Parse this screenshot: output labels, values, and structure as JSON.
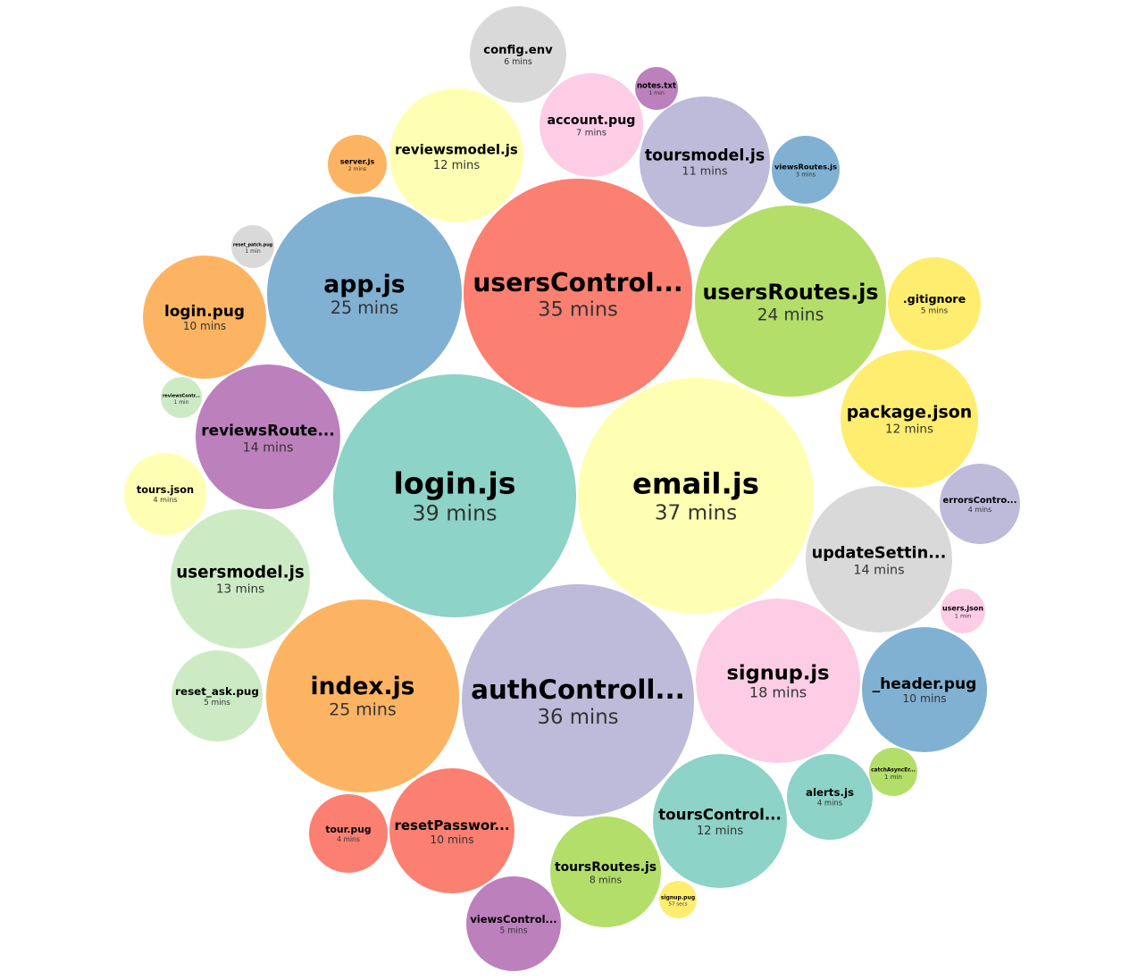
{
  "chart_data": {
    "type": "bubble",
    "title": "",
    "value_unit": "mins",
    "bubbles": [
      {
        "name": "login.js",
        "duration": "39 mins",
        "minutes": 39,
        "color": "#8DD3C7"
      },
      {
        "name": "email.js",
        "duration": "37 mins",
        "minutes": 37,
        "color": "#FFFFB3"
      },
      {
        "name": "authControll...",
        "duration": "36 mins",
        "minutes": 36,
        "color": "#BEBADA"
      },
      {
        "name": "usersControl...",
        "duration": "35 mins",
        "minutes": 35,
        "color": "#FB8072"
      },
      {
        "name": "app.js",
        "duration": "25 mins",
        "minutes": 25,
        "color": "#80B1D3"
      },
      {
        "name": "index.js",
        "duration": "25 mins",
        "minutes": 25,
        "color": "#FDB462"
      },
      {
        "name": "usersRoutes.js",
        "duration": "24 mins",
        "minutes": 24,
        "color": "#B3DE69"
      },
      {
        "name": "signup.js",
        "duration": "18 mins",
        "minutes": 18,
        "color": "#FCCDE5"
      },
      {
        "name": "reviewsRoute...",
        "duration": "14 mins",
        "minutes": 14,
        "color": "#BC80BD"
      },
      {
        "name": "updateSettin...",
        "duration": "14 mins",
        "minutes": 14,
        "color": "#D9D9D9"
      },
      {
        "name": "usersmodel.js",
        "duration": "13 mins",
        "minutes": 13,
        "color": "#CCEBC5"
      },
      {
        "name": "reviewsmodel.js",
        "duration": "12 mins",
        "minutes": 12,
        "color": "#FFFFB3"
      },
      {
        "name": "package.json",
        "duration": "12 mins",
        "minutes": 12,
        "color": "#FFED6F"
      },
      {
        "name": "toursControl...",
        "duration": "12 mins",
        "minutes": 12,
        "color": "#8DD3C7"
      },
      {
        "name": "toursmodel.js",
        "duration": "11 mins",
        "minutes": 11,
        "color": "#BEBADA"
      },
      {
        "name": "login.pug",
        "duration": "10 mins",
        "minutes": 10,
        "color": "#FDB462"
      },
      {
        "name": "_header.pug",
        "duration": "10 mins",
        "minutes": 10,
        "color": "#80B1D3"
      },
      {
        "name": "resetPasswor...",
        "duration": "10 mins",
        "minutes": 10,
        "color": "#FB8072"
      },
      {
        "name": "toursRoutes.js",
        "duration": "8 mins",
        "minutes": 8,
        "color": "#B3DE69"
      },
      {
        "name": "account.pug",
        "duration": "7 mins",
        "minutes": 7,
        "color": "#FCCDE5"
      },
      {
        "name": "config.env",
        "duration": "6 mins",
        "minutes": 6,
        "color": "#D9D9D9"
      },
      {
        "name": ".gitignore",
        "duration": "5 mins",
        "minutes": 5,
        "color": "#FFED6F"
      },
      {
        "name": "reset_ask.pug",
        "duration": "5 mins",
        "minutes": 5,
        "color": "#CCEBC5"
      },
      {
        "name": "viewsControl...",
        "duration": "5 mins",
        "minutes": 5,
        "color": "#BC80BD"
      },
      {
        "name": "tours.json",
        "duration": "4 mins",
        "minutes": 4,
        "color": "#FFFFB3"
      },
      {
        "name": "errorsContro...",
        "duration": "4 mins",
        "minutes": 4,
        "color": "#BEBADA"
      },
      {
        "name": "alerts.js",
        "duration": "4 mins",
        "minutes": 4,
        "color": "#8DD3C7"
      },
      {
        "name": "tour.pug",
        "duration": "4 mins",
        "minutes": 4,
        "color": "#FB8072"
      },
      {
        "name": "viewsRoutes.js",
        "duration": "3 mins",
        "minutes": 3,
        "color": "#80B1D3"
      },
      {
        "name": "server.js",
        "duration": "2 mins",
        "minutes": 2,
        "color": "#FDB462"
      },
      {
        "name": "notes.txt",
        "duration": "1 min",
        "minutes": 1,
        "color": "#BC80BD"
      },
      {
        "name": "reset_patch.pug",
        "duration": "1 min",
        "minutes": 1,
        "color": "#D9D9D9"
      },
      {
        "name": "reviewsContr...",
        "duration": "1 min",
        "minutes": 1,
        "color": "#CCEBC5"
      },
      {
        "name": "users.json",
        "duration": "1 min",
        "minutes": 1,
        "color": "#FCCDE5"
      },
      {
        "name": "catchAsyncEr...",
        "duration": "1 min",
        "minutes": 1,
        "color": "#B3DE69"
      },
      {
        "name": "signup.pug",
        "duration": "57 secs",
        "minutes": 0.95,
        "color": "#FFED6F"
      }
    ]
  }
}
